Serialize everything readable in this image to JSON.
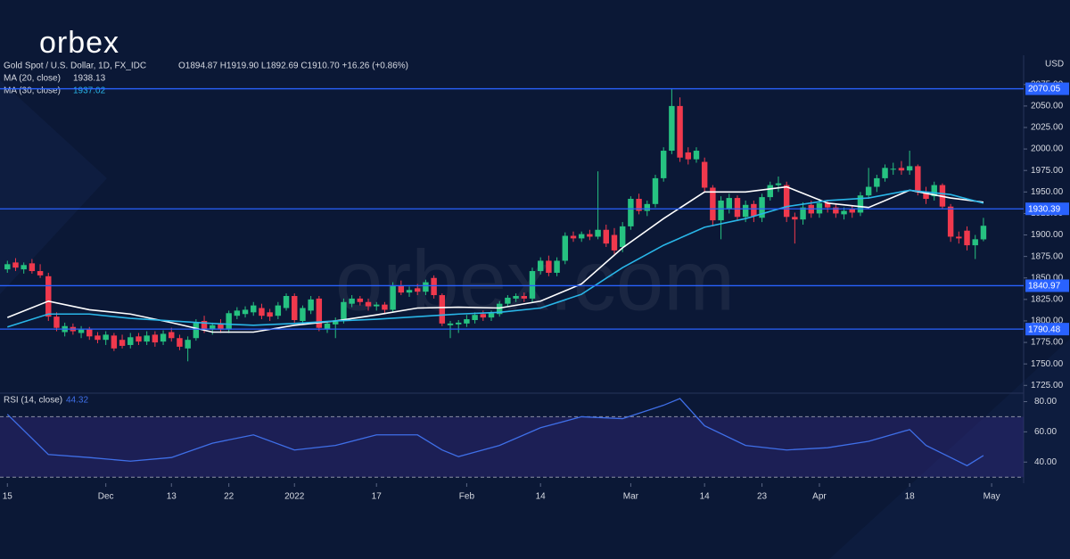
{
  "chart_data": {
    "type": "candlestick",
    "logo": "orbex",
    "watermark": "orbex.com",
    "symbol": "Gold Spot / U.S. Dollar, 1D, FX_IDC",
    "ohlc_text": "O1894.87  H1919.90  L1892.69  C1910.70  +16.26 (+0.86%)",
    "currency": "USD",
    "xlim": [
      -0.9,
      123.9
    ],
    "xticks": [
      {
        "value": 0,
        "label": "15"
      },
      {
        "value": 12,
        "label": "Dec"
      },
      {
        "value": 20,
        "label": "13"
      },
      {
        "value": 27,
        "label": "22"
      },
      {
        "value": 35,
        "label": "2022"
      },
      {
        "value": 45,
        "label": "17"
      },
      {
        "value": 56,
        "label": "Feb"
      },
      {
        "value": 65,
        "label": "14"
      },
      {
        "value": 76,
        "label": "Mar"
      },
      {
        "value": 85,
        "label": "14"
      },
      {
        "value": 92,
        "label": "23"
      },
      {
        "value": 99,
        "label": "Apr"
      },
      {
        "value": 110,
        "label": "18"
      },
      {
        "value": 120,
        "label": "May"
      }
    ],
    "ylim": [
      1717,
      2109
    ],
    "yticks": [
      {
        "value": 1725,
        "label": "1725.00"
      },
      {
        "value": 1750,
        "label": "1750.00"
      },
      {
        "value": 1775,
        "label": "1775.00"
      },
      {
        "value": 1800,
        "label": "1800.00"
      },
      {
        "value": 1825,
        "label": "1825.00"
      },
      {
        "value": 1850,
        "label": "1850.00"
      },
      {
        "value": 1875,
        "label": "1875.00"
      },
      {
        "value": 1900,
        "label": "1900.00"
      },
      {
        "value": 1925,
        "label": "1925.00"
      },
      {
        "value": 1950,
        "label": "1950.00"
      },
      {
        "value": 1975,
        "label": "1975.00"
      },
      {
        "value": 2000,
        "label": "2000.00"
      },
      {
        "value": 2025,
        "label": "2025.00"
      },
      {
        "value": 2050,
        "label": "2050.00"
      },
      {
        "value": 2075,
        "label": "2075.00"
      }
    ],
    "up_color": "#26c281",
    "down_color": "#f0394d",
    "ohlc": [
      [
        1860,
        1870,
        1856,
        1866
      ],
      [
        1868,
        1873,
        1858,
        1862
      ],
      [
        1860,
        1868,
        1855,
        1865
      ],
      [
        1867,
        1872,
        1855,
        1858
      ],
      [
        1858,
        1866,
        1850,
        1853
      ],
      [
        1852,
        1856,
        1800,
        1805
      ],
      [
        1805,
        1810,
        1788,
        1792
      ],
      [
        1787,
        1798,
        1782,
        1794
      ],
      [
        1793,
        1797,
        1784,
        1788
      ],
      [
        1786,
        1794,
        1780,
        1790
      ],
      [
        1790,
        1793,
        1778,
        1782
      ],
      [
        1783,
        1787,
        1774,
        1778
      ],
      [
        1778,
        1788,
        1772,
        1784
      ],
      [
        1783,
        1786,
        1765,
        1768
      ],
      [
        1778,
        1784,
        1768,
        1771
      ],
      [
        1772,
        1786,
        1768,
        1781
      ],
      [
        1782,
        1786,
        1772,
        1776
      ],
      [
        1776,
        1788,
        1772,
        1783
      ],
      [
        1784,
        1788,
        1770,
        1775
      ],
      [
        1776,
        1789,
        1772,
        1785
      ],
      [
        1787,
        1792,
        1776,
        1780
      ],
      [
        1780,
        1784,
        1766,
        1770
      ],
      [
        1768,
        1782,
        1753,
        1778
      ],
      [
        1780,
        1802,
        1777,
        1798
      ],
      [
        1800,
        1806,
        1786,
        1790
      ],
      [
        1790,
        1798,
        1784,
        1795
      ],
      [
        1797,
        1802,
        1786,
        1790
      ],
      [
        1790,
        1812,
        1786,
        1809
      ],
      [
        1806,
        1816,
        1802,
        1812
      ],
      [
        1808,
        1817,
        1804,
        1813
      ],
      [
        1810,
        1822,
        1806,
        1818
      ],
      [
        1815,
        1820,
        1802,
        1806
      ],
      [
        1810,
        1814,
        1800,
        1805
      ],
      [
        1806,
        1822,
        1802,
        1818
      ],
      [
        1815,
        1832,
        1812,
        1829
      ],
      [
        1829,
        1832,
        1798,
        1801
      ],
      [
        1800,
        1818,
        1796,
        1815
      ],
      [
        1812,
        1829,
        1808,
        1825
      ],
      [
        1826,
        1829,
        1788,
        1792
      ],
      [
        1791,
        1800,
        1786,
        1797
      ],
      [
        1796,
        1804,
        1780,
        1800
      ],
      [
        1800,
        1826,
        1797,
        1822
      ],
      [
        1820,
        1830,
        1816,
        1826
      ],
      [
        1826,
        1829,
        1818,
        1822
      ],
      [
        1822,
        1826,
        1812,
        1817
      ],
      [
        1817,
        1822,
        1812,
        1819
      ],
      [
        1819,
        1822,
        1808,
        1813
      ],
      [
        1813,
        1845,
        1810,
        1841
      ],
      [
        1841,
        1847,
        1830,
        1833
      ],
      [
        1833,
        1840,
        1828,
        1836
      ],
      [
        1838,
        1843,
        1830,
        1834
      ],
      [
        1834,
        1848,
        1830,
        1845
      ],
      [
        1850,
        1853,
        1826,
        1830
      ],
      [
        1830,
        1832,
        1794,
        1797
      ],
      [
        1795,
        1800,
        1780,
        1797
      ],
      [
        1796,
        1801,
        1786,
        1798
      ],
      [
        1797,
        1807,
        1793,
        1802
      ],
      [
        1801,
        1810,
        1797,
        1807
      ],
      [
        1808,
        1812,
        1800,
        1804
      ],
      [
        1804,
        1812,
        1800,
        1809
      ],
      [
        1808,
        1823,
        1805,
        1820
      ],
      [
        1820,
        1830,
        1816,
        1827
      ],
      [
        1826,
        1832,
        1822,
        1829
      ],
      [
        1829,
        1833,
        1822,
        1826
      ],
      [
        1826,
        1862,
        1822,
        1858
      ],
      [
        1858,
        1874,
        1854,
        1870
      ],
      [
        1870,
        1876,
        1852,
        1856
      ],
      [
        1856,
        1874,
        1852,
        1870
      ],
      [
        1870,
        1903,
        1866,
        1899
      ],
      [
        1899,
        1904,
        1892,
        1896
      ],
      [
        1896,
        1904,
        1892,
        1901
      ],
      [
        1901,
        1906,
        1894,
        1898
      ],
      [
        1898,
        1974,
        1895,
        1906
      ],
      [
        1906,
        1912,
        1886,
        1890
      ],
      [
        1900,
        1908,
        1878,
        1882
      ],
      [
        1886,
        1915,
        1880,
        1910
      ],
      [
        1910,
        1945,
        1906,
        1942
      ],
      [
        1942,
        1948,
        1924,
        1928
      ],
      [
        1928,
        1940,
        1922,
        1936
      ],
      [
        1936,
        1970,
        1932,
        1966
      ],
      [
        1966,
        2002,
        1962,
        1998
      ],
      [
        1998,
        2070,
        1994,
        2050
      ],
      [
        2050,
        2060,
        1985,
        1990
      ],
      [
        1996,
        2002,
        1982,
        1988
      ],
      [
        1988,
        2002,
        1984,
        1998
      ],
      [
        1985,
        1990,
        1950,
        1955
      ],
      [
        1955,
        1958,
        1910,
        1917
      ],
      [
        1917,
        1945,
        1895,
        1940
      ],
      [
        1930,
        1948,
        1925,
        1943
      ],
      [
        1943,
        1946,
        1916,
        1921
      ],
      [
        1921,
        1940,
        1915,
        1935
      ],
      [
        1936,
        1940,
        1915,
        1922
      ],
      [
        1920,
        1948,
        1915,
        1944
      ],
      [
        1944,
        1962,
        1940,
        1958
      ],
      [
        1958,
        1968,
        1950,
        1960
      ],
      [
        1958,
        1962,
        1915,
        1921
      ],
      [
        1921,
        1926,
        1890,
        1918
      ],
      [
        1918,
        1938,
        1912,
        1932
      ],
      [
        1935,
        1940,
        1920,
        1925
      ],
      [
        1925,
        1942,
        1920,
        1937
      ],
      [
        1937,
        1941,
        1926,
        1932
      ],
      [
        1932,
        1936,
        1920,
        1925
      ],
      [
        1924,
        1932,
        1918,
        1928
      ],
      [
        1930,
        1934,
        1920,
        1926
      ],
      [
        1926,
        1950,
        1922,
        1946
      ],
      [
        1946,
        1978,
        1942,
        1956
      ],
      [
        1956,
        1970,
        1950,
        1966
      ],
      [
        1966,
        1982,
        1962,
        1978
      ],
      [
        1976,
        1984,
        1970,
        1977
      ],
      [
        1978,
        1986,
        1970,
        1975
      ],
      [
        1975,
        1998,
        1970,
        1980
      ],
      [
        1980,
        1982,
        1946,
        1950
      ],
      [
        1950,
        1956,
        1936,
        1942
      ],
      [
        1945,
        1962,
        1940,
        1958
      ],
      [
        1958,
        1960,
        1930,
        1933
      ],
      [
        1933,
        1936,
        1892,
        1898
      ],
      [
        1898,
        1904,
        1890,
        1896
      ],
      [
        1905,
        1910,
        1882,
        1888
      ],
      [
        1888,
        1900,
        1872,
        1895
      ],
      [
        1894.87,
        1919.9,
        1892.69,
        1910.7
      ]
    ],
    "lines": [
      {
        "name": "MA (20, close)",
        "color": "#ffffff",
        "x": [
          0,
          5,
          10,
          15,
          20,
          25,
          30,
          35,
          40,
          45,
          50,
          55,
          60,
          65,
          70,
          75,
          80,
          85,
          90,
          95,
          100,
          105,
          110,
          115,
          119
        ],
        "values": [
          1804,
          1823,
          1813,
          1808,
          1798,
          1787,
          1787,
          1795,
          1800,
          1807,
          1815,
          1816,
          1815,
          1823,
          1843,
          1885,
          1919,
          1950,
          1950,
          1956,
          1937,
          1932,
          1952,
          1943,
          1938.13
        ]
      },
      {
        "name": "MA (30, close)",
        "color": "#29b6e8",
        "x": [
          0,
          5,
          10,
          15,
          20,
          25,
          30,
          35,
          40,
          45,
          50,
          55,
          60,
          65,
          70,
          75,
          80,
          85,
          90,
          95,
          100,
          105,
          110,
          115,
          119
        ],
        "values": [
          1793,
          1808,
          1808,
          1803,
          1800,
          1797,
          1795,
          1797,
          1800,
          1802,
          1805,
          1808,
          1810,
          1815,
          1831,
          1862,
          1888,
          1909,
          1919,
          1933,
          1940,
          1943,
          1952,
          1947,
          1937.02
        ]
      }
    ],
    "levels": {
      "color": "#2962ff",
      "values": [
        2070.05,
        1930.39,
        1840.97,
        1790.48
      ]
    },
    "rsi": {
      "name": "RSI (14, close)",
      "color": "#3f6fe8",
      "x": [
        0,
        5,
        10,
        15,
        20,
        25,
        30,
        35,
        40,
        45,
        50,
        53,
        55,
        60,
        65,
        70,
        75,
        80,
        82,
        85,
        90,
        95,
        100,
        105,
        110,
        112,
        115,
        117,
        119
      ],
      "values": [
        71.6,
        45,
        43,
        40.6,
        43,
        52.5,
        58,
        48,
        51,
        58,
        58,
        48,
        43.6,
        51,
        62.7,
        70,
        68.7,
        77.6,
        82,
        64,
        51,
        48,
        49.5,
        53.7,
        61.5,
        51,
        43,
        37.6,
        44.32
      ],
      "ylim": [
        26,
        85
      ],
      "yticks": [
        {
          "value": 40,
          "label": "40.00"
        },
        {
          "value": 60,
          "label": "60.00"
        },
        {
          "value": 80,
          "label": "80.00"
        }
      ],
      "bands": [
        30,
        70
      ]
    }
  }
}
